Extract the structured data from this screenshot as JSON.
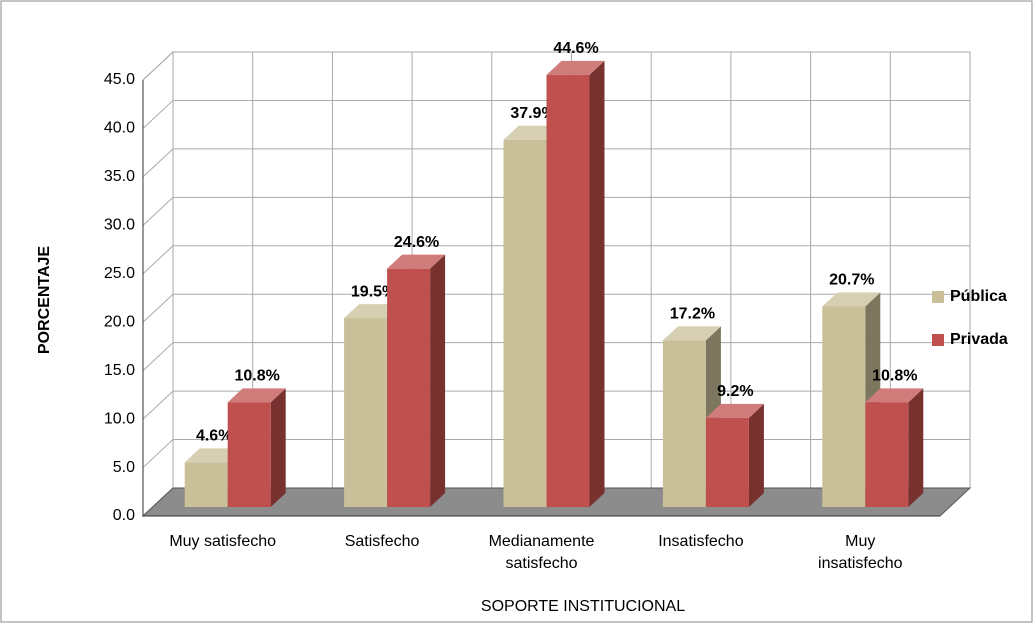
{
  "chart_data": {
    "type": "bar3d",
    "categories": [
      "Muy satisfecho",
      "Satisfecho",
      "Medianamente satisfecho",
      "Insatisfecho",
      "Muy insatisfecho"
    ],
    "series": [
      {
        "name": "Pública",
        "color": "#c9bf98",
        "values": [
          4.6,
          19.5,
          37.9,
          17.2,
          20.7
        ],
        "value_labels": [
          "4.6%",
          "19.5%",
          "37.9%",
          "17.2%",
          "20.7%"
        ]
      },
      {
        "name": "Privada",
        "color": "#c0504d",
        "values": [
          10.8,
          24.6,
          44.6,
          9.2,
          10.8
        ],
        "value_labels": [
          "10.8%",
          "24.6%",
          "44.6%",
          "9.2%",
          "10.8%"
        ]
      }
    ],
    "x_label": "SOPORTE INSTITUCIONAL",
    "y_label": "PORCENTAJE",
    "ylim": [
      0,
      45
    ],
    "yticks": [
      {
        "value": 0,
        "label": "0.0"
      },
      {
        "value": 5,
        "label": "5.0"
      },
      {
        "value": 10,
        "label": "10.0"
      },
      {
        "value": 15,
        "label": "15.0"
      },
      {
        "value": 20,
        "label": "20.0"
      },
      {
        "value": 25,
        "label": "25.0"
      },
      {
        "value": 30,
        "label": "30.0"
      },
      {
        "value": 35,
        "label": "35.0"
      },
      {
        "value": 40,
        "label": "40.0"
      },
      {
        "value": 45,
        "label": "45.0"
      }
    ],
    "grid": true,
    "legend": "right"
  }
}
